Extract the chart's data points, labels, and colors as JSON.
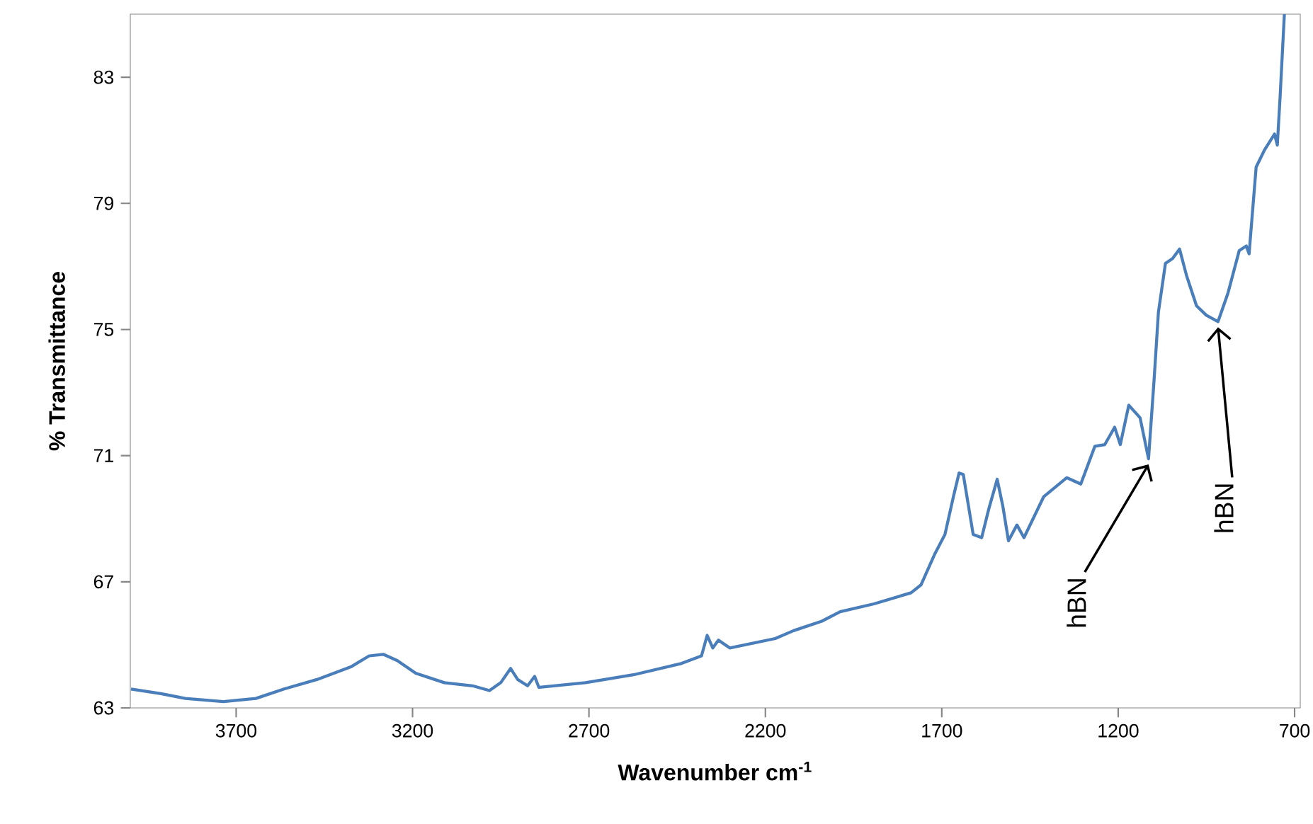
{
  "chart_data": {
    "type": "line",
    "xlabel": "Wavenumber cm$^{-1}$",
    "ylabel": "% Transmittance",
    "xlim": [
      4000,
      684
    ],
    "ylim": [
      63,
      85
    ],
    "xticks": [
      3700,
      3200,
      2700,
      2200,
      1700,
      1200,
      700
    ],
    "yticks": [
      63,
      67,
      71,
      75,
      79,
      83
    ],
    "series": [
      {
        "color": "#4a7ebb",
        "x": [
          3998,
          3913,
          3844,
          3736,
          3644,
          3564,
          3471,
          3375,
          3323,
          3283,
          3243,
          3191,
          3110,
          3030,
          2982,
          2950,
          2922,
          2902,
          2874,
          2854,
          2842,
          2710,
          2574,
          2441,
          2381,
          2365,
          2349,
          2333,
          2301,
          2172,
          2120,
          2040,
          1988,
          1892,
          1787,
          1759,
          1719,
          1691,
          1667,
          1651,
          1639,
          1611,
          1587,
          1567,
          1543,
          1527,
          1511,
          1487,
          1467,
          1411,
          1346,
          1306,
          1266,
          1238,
          1210,
          1194,
          1170,
          1138,
          1114,
          1098,
          1086,
          1066,
          1046,
          1026,
          1006,
          978,
          950,
          917,
          889,
          857,
          837,
          829,
          809,
          785,
          757,
          749,
          741,
          729
        ],
        "values": [
          63.6,
          63.45,
          63.3,
          63.2,
          63.3,
          63.6,
          63.9,
          64.3,
          64.65,
          64.7,
          64.5,
          64.1,
          63.8,
          63.7,
          63.55,
          63.8,
          64.25,
          63.9,
          63.7,
          64.0,
          63.65,
          63.8,
          64.05,
          64.4,
          64.65,
          65.3,
          64.9,
          65.15,
          64.9,
          65.2,
          65.45,
          65.75,
          66.05,
          66.3,
          66.65,
          66.9,
          67.9,
          68.5,
          69.7,
          70.45,
          70.4,
          68.5,
          68.4,
          69.3,
          70.25,
          69.4,
          68.3,
          68.8,
          68.4,
          69.7,
          70.3,
          70.1,
          71.3,
          71.35,
          71.9,
          71.35,
          72.6,
          72.2,
          70.9,
          73.45,
          75.55,
          77.1,
          77.25,
          77.55,
          76.7,
          75.75,
          75.45,
          75.25,
          76.15,
          77.5,
          77.65,
          77.4,
          80.15,
          80.7,
          81.2,
          80.85,
          82.4,
          85
        ]
      }
    ],
    "annotations": [
      {
        "text": "hBN",
        "x": 1114,
        "y": 70.9
      },
      {
        "text": "hBN",
        "x": 917,
        "y": 75.25
      }
    ]
  }
}
